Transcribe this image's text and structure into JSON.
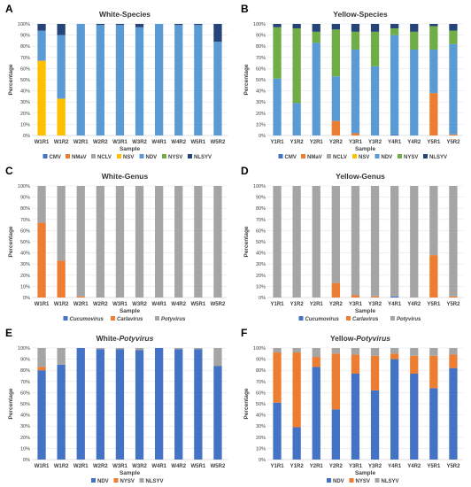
{
  "chart_data": [
    {
      "id": "A",
      "letter": "A",
      "type": "bar",
      "title": "White-Species",
      "title_italic": "",
      "xlabel": "Sample",
      "ylabel": "Percentage",
      "ylim": [
        0,
        100
      ],
      "yticks": [
        "0%",
        "10%",
        "20%",
        "30%",
        "40%",
        "50%",
        "60%",
        "70%",
        "80%",
        "90%",
        "100%"
      ],
      "categories": [
        "W1R1",
        "W1R2",
        "W2R1",
        "W2R2",
        "W3R1",
        "W3R2",
        "W4R1",
        "W4R2",
        "W5R1",
        "W5R2"
      ],
      "series": [
        {
          "name": "CMV",
          "color": "#4472C4",
          "values": [
            0,
            0,
            0,
            0,
            0,
            0,
            0,
            0,
            0,
            0
          ]
        },
        {
          "name": "NMaV",
          "color": "#ED7D31",
          "values": [
            0,
            0,
            0,
            0,
            0,
            0,
            0,
            0,
            0,
            0
          ]
        },
        {
          "name": "NCLV",
          "color": "#A5A5A5",
          "values": [
            0,
            0,
            0,
            0,
            0,
            0,
            0,
            0,
            0,
            0
          ]
        },
        {
          "name": "NSV",
          "color": "#FFC000",
          "values": [
            67,
            33,
            0,
            0,
            0,
            0,
            0,
            0,
            0,
            0
          ]
        },
        {
          "name": "NDV",
          "color": "#5B9BD5",
          "values": [
            27,
            57,
            100,
            99,
            99,
            97,
            100,
            99,
            99,
            84
          ]
        },
        {
          "name": "NYSV",
          "color": "#70AD47",
          "values": [
            0,
            0,
            0,
            0,
            0,
            0,
            0,
            0,
            0,
            0
          ]
        },
        {
          "name": "NLSYV",
          "color": "#264478",
          "values": [
            6,
            10,
            0,
            1,
            1,
            3,
            0,
            1,
            1,
            16
          ]
        }
      ]
    },
    {
      "id": "B",
      "letter": "B",
      "type": "bar",
      "title": "Yellow-Species",
      "title_italic": "",
      "xlabel": "Sample",
      "ylabel": "Percentage",
      "ylim": [
        0,
        100
      ],
      "yticks": [
        "0%",
        "10%",
        "20%",
        "30%",
        "40%",
        "50%",
        "60%",
        "70%",
        "80%",
        "90%",
        "100%"
      ],
      "categories": [
        "Y1R1",
        "Y1R2",
        "Y2R1",
        "Y2R2",
        "Y3R1",
        "Y3R2",
        "Y4R1",
        "Y4R2",
        "Y5R1",
        "Y5R2"
      ],
      "series": [
        {
          "name": "CMV",
          "color": "#4472C4",
          "values": [
            0,
            0,
            0,
            0,
            0,
            0,
            1,
            0,
            0,
            0
          ]
        },
        {
          "name": "NMaV",
          "color": "#ED7D31",
          "values": [
            0,
            0,
            0,
            13,
            2,
            0,
            0,
            0,
            38,
            1
          ]
        },
        {
          "name": "NCLV",
          "color": "#A5A5A5",
          "values": [
            0,
            0,
            0,
            0,
            0,
            0,
            0,
            0,
            0,
            0
          ]
        },
        {
          "name": "NSV",
          "color": "#FFC000",
          "values": [
            0,
            0,
            0,
            0,
            0,
            0,
            0,
            0,
            0,
            0
          ]
        },
        {
          "name": "NDV",
          "color": "#5B9BD5",
          "values": [
            51,
            29,
            83,
            40,
            75,
            62,
            89,
            77,
            39,
            81
          ]
        },
        {
          "name": "NYSV",
          "color": "#70AD47",
          "values": [
            46,
            67,
            10,
            42,
            16,
            31,
            6,
            16,
            21,
            12
          ]
        },
        {
          "name": "NLSYV",
          "color": "#264478",
          "values": [
            3,
            4,
            7,
            5,
            7,
            7,
            4,
            7,
            2,
            6
          ]
        }
      ]
    },
    {
      "id": "C",
      "letter": "C",
      "type": "bar",
      "title": "White-Genus",
      "title_italic": "",
      "xlabel": "Sample",
      "ylabel": "Percentage",
      "ylim": [
        0,
        100
      ],
      "yticks": [
        "0%",
        "10%",
        "20%",
        "30%",
        "40%",
        "50%",
        "60%",
        "70%",
        "80%",
        "90%",
        "100%"
      ],
      "categories": [
        "W1R1",
        "W1R2",
        "W2R1",
        "W2R2",
        "W3R1",
        "W3R2",
        "W4R1",
        "W4R2",
        "W5R1",
        "W5R2"
      ],
      "series": [
        {
          "name": "Cucumovirus",
          "color": "#4472C4",
          "values": [
            0,
            0,
            0,
            0,
            0,
            0,
            0,
            0,
            0,
            0
          ]
        },
        {
          "name": "Carlavirus",
          "color": "#ED7D31",
          "values": [
            67,
            33,
            1,
            0,
            0,
            0,
            0,
            0,
            0,
            0
          ]
        },
        {
          "name": "Potyvirus",
          "color": "#A5A5A5",
          "values": [
            33,
            67,
            99,
            100,
            100,
            100,
            100,
            100,
            100,
            100
          ]
        }
      ]
    },
    {
      "id": "D",
      "letter": "D",
      "type": "bar",
      "title": "Yellow-Genus",
      "title_italic": "",
      "xlabel": "Sample",
      "ylabel": "Percentage",
      "ylim": [
        0,
        100
      ],
      "yticks": [
        "0%",
        "10%",
        "20%",
        "30%",
        "40%",
        "50%",
        "60%",
        "70%",
        "80%",
        "90%",
        "100%"
      ],
      "categories": [
        "Y1R1",
        "Y1R2",
        "Y2R1",
        "Y2R2",
        "Y3R1",
        "Y3R2",
        "Y4R1",
        "Y4R2",
        "Y5R1",
        "Y5R2"
      ],
      "series": [
        {
          "name": "Cucumovirus",
          "color": "#4472C4",
          "values": [
            0,
            0,
            0,
            0,
            0,
            0,
            1,
            0,
            0,
            0
          ]
        },
        {
          "name": "Carlavirus",
          "color": "#ED7D31",
          "values": [
            0,
            0,
            0,
            13,
            2,
            1,
            0,
            0,
            38,
            1
          ]
        },
        {
          "name": "Potyvirus",
          "color": "#A5A5A5",
          "values": [
            100,
            100,
            100,
            87,
            98,
            99,
            99,
            100,
            62,
            99
          ]
        }
      ]
    },
    {
      "id": "E",
      "letter": "E",
      "type": "bar",
      "title": "White-",
      "title_italic": "Potyvirus",
      "xlabel": "Sample",
      "ylabel": "Percentage",
      "ylim": [
        0,
        100
      ],
      "yticks": [
        "0%",
        "10%",
        "20%",
        "30%",
        "40%",
        "50%",
        "60%",
        "70%",
        "80%",
        "90%",
        "100%"
      ],
      "categories": [
        "W1R1",
        "W1R2",
        "W2R1",
        "W2R2",
        "W3R1",
        "W3R2",
        "W4R1",
        "W4R2",
        "W5R1",
        "W5R2"
      ],
      "series": [
        {
          "name": "NDV",
          "color": "#4472C4",
          "values": [
            80,
            85,
            100,
            99,
            99,
            98,
            100,
            99,
            99,
            84
          ]
        },
        {
          "name": "NYSV",
          "color": "#ED7D31",
          "values": [
            3,
            0,
            0,
            0,
            0,
            0,
            0,
            0,
            0,
            0
          ]
        },
        {
          "name": "NLSYV",
          "color": "#A5A5A5",
          "values": [
            17,
            15,
            0,
            1,
            1,
            2,
            0,
            1,
            1,
            16
          ]
        }
      ]
    },
    {
      "id": "F",
      "letter": "F",
      "type": "bar",
      "title": "Yellow-",
      "title_italic": "Potyvirus",
      "xlabel": "Sample",
      "ylabel": "Percentage",
      "ylim": [
        0,
        100
      ],
      "yticks": [
        "0%",
        "10%",
        "20%",
        "30%",
        "40%",
        "50%",
        "60%",
        "70%",
        "80%",
        "90%",
        "100%"
      ],
      "categories": [
        "Y1R1",
        "Y1R2",
        "Y2R1",
        "Y2R2",
        "Y3R1",
        "Y3R2",
        "Y4R1",
        "Y4R2",
        "Y5R1",
        "Y5R2"
      ],
      "series": [
        {
          "name": "NDV",
          "color": "#4472C4",
          "values": [
            51,
            29,
            83,
            45,
            77,
            62,
            90,
            77,
            64,
            82
          ]
        },
        {
          "name": "NYSV",
          "color": "#ED7D31",
          "values": [
            45,
            67,
            9,
            50,
            17,
            31,
            5,
            16,
            29,
            12
          ]
        },
        {
          "name": "NLSYV",
          "color": "#A5A5A5",
          "values": [
            4,
            4,
            8,
            5,
            6,
            7,
            5,
            7,
            7,
            6
          ]
        }
      ]
    }
  ]
}
